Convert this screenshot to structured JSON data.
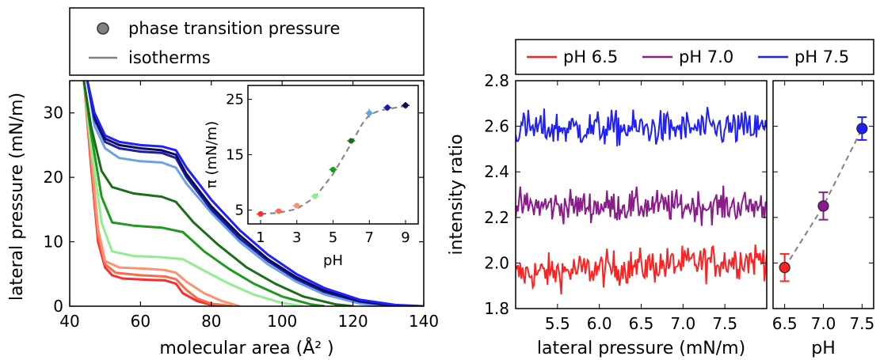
{
  "colors": {
    "ph1": "#ff2b2b",
    "ph2": "#fb6a4a",
    "ph3": "#fc9272",
    "ph4": "#90ee90",
    "ph5": "#1f9a1f",
    "ph6": "#1a6e1a",
    "ph7": "#6ba1e6",
    "ph8": "#1c1caa",
    "ph9": "#0b0b5a",
    "red": "#ff2222",
    "purple": "#8b1a8b",
    "blue": "#1f1fff",
    "gray": "#808080"
  },
  "chart_data": [
    {
      "id": "isotherms",
      "type": "line",
      "xlabel": "molecular area (Å² )",
      "ylabel": "lateral pressure (mN/m)",
      "xlim": [
        40,
        140
      ],
      "ylim": [
        0,
        35
      ],
      "x_ticks": [
        "40",
        "60",
        "80",
        "100",
        "120",
        "140"
      ],
      "y_ticks": [
        "0",
        "10",
        "20",
        "30"
      ],
      "legend": {
        "placement": "top-left-outside",
        "entries": [
          {
            "label": "phase transition pressure",
            "marker": "circle"
          },
          {
            "label": "isotherms",
            "marker": "line"
          }
        ]
      },
      "series": [
        {
          "color_key": "ph1",
          "points": [
            [
              44,
              35
            ],
            [
              46,
              22
            ],
            [
              48,
              10
            ],
            [
              50,
              6
            ],
            [
              52,
              4.8
            ],
            [
              55,
              4.3
            ],
            [
              62,
              4.1
            ],
            [
              67,
              4.0
            ],
            [
              70,
              3.5
            ],
            [
              72,
              2.0
            ],
            [
              76,
              0.8
            ],
            [
              80,
              0.2
            ],
            [
              84,
              0
            ]
          ]
        },
        {
          "color_key": "ph2",
          "points": [
            [
              44,
              35
            ],
            [
              46,
              23
            ],
            [
              48,
              11
            ],
            [
              50,
              6.5
            ],
            [
              53,
              5.2
            ],
            [
              60,
              4.8
            ],
            [
              67,
              4.6
            ],
            [
              70,
              4.2
            ],
            [
              73,
              2.5
            ],
            [
              76,
              1.2
            ],
            [
              80,
              0.4
            ],
            [
              86,
              0
            ]
          ]
        },
        {
          "color_key": "ph3",
          "points": [
            [
              44,
              35
            ],
            [
              46,
              24
            ],
            [
              48,
              12
            ],
            [
              50,
              7
            ],
            [
              54,
              6
            ],
            [
              62,
              5.8
            ],
            [
              67,
              5.6
            ],
            [
              70,
              5.2
            ],
            [
              73,
              3.8
            ],
            [
              78,
              2.0
            ],
            [
              83,
              0.8
            ],
            [
              88,
              0
            ]
          ]
        },
        {
          "color_key": "ph4",
          "points": [
            [
              44,
              35
            ],
            [
              46,
              25
            ],
            [
              49,
              13
            ],
            [
              52,
              8.5
            ],
            [
              58,
              7.8
            ],
            [
              66,
              7.6
            ],
            [
              72,
              7.3
            ],
            [
              78,
              5.5
            ],
            [
              85,
              3.5
            ],
            [
              92,
              1.8
            ],
            [
              100,
              0.5
            ],
            [
              106,
              0
            ]
          ]
        },
        {
          "color_key": "ph5",
          "points": [
            [
              44,
              35
            ],
            [
              46,
              27
            ],
            [
              49,
              17
            ],
            [
              52,
              13
            ],
            [
              58,
              12.5
            ],
            [
              66,
              12.2
            ],
            [
              72,
              11.5
            ],
            [
              78,
              8.5
            ],
            [
              85,
              5.8
            ],
            [
              92,
              3.5
            ],
            [
              100,
              1.5
            ],
            [
              108,
              0.3
            ],
            [
              112,
              0
            ]
          ]
        },
        {
          "color_key": "ph6",
          "points": [
            [
              44,
              35
            ],
            [
              46,
              28
            ],
            [
              49,
              21
            ],
            [
              52,
              18.5
            ],
            [
              58,
              17.5
            ],
            [
              66,
              17
            ],
            [
              70,
              16.2
            ],
            [
              75,
              13
            ],
            [
              82,
              9.5
            ],
            [
              90,
              6
            ],
            [
              98,
              3.5
            ],
            [
              106,
              1.5
            ],
            [
              115,
              0.3
            ],
            [
              120,
              0
            ]
          ]
        },
        {
          "color_key": "ph7",
          "points": [
            [
              45,
              35
            ],
            [
              47,
              28
            ],
            [
              50,
              24.5
            ],
            [
              54,
              23
            ],
            [
              60,
              22.5
            ],
            [
              66,
              22.3
            ],
            [
              70,
              21.5
            ],
            [
              73,
              19
            ],
            [
              80,
              14.5
            ],
            [
              88,
              10
            ],
            [
              96,
              6.5
            ],
            [
              104,
              3.8
            ],
            [
              112,
              1.8
            ],
            [
              122,
              0.4
            ],
            [
              130,
              0
            ]
          ]
        },
        {
          "color_key": "ph8",
          "points": [
            [
              45,
              35
            ],
            [
              47,
              29
            ],
            [
              50,
              25.5
            ],
            [
              54,
              24.5
            ],
            [
              60,
              24
            ],
            [
              66,
              23.8
            ],
            [
              70,
              23
            ],
            [
              73,
              20
            ],
            [
              80,
              15
            ],
            [
              88,
              10.5
            ],
            [
              96,
              7
            ],
            [
              104,
              4.2
            ],
            [
              112,
              2.2
            ],
            [
              122,
              0.7
            ],
            [
              132,
              0
            ]
          ]
        },
        {
          "color_key": "ph9",
          "points": [
            [
              45,
              35
            ],
            [
              47,
              29.5
            ],
            [
              50,
              26
            ],
            [
              54,
              25
            ],
            [
              60,
              24.5
            ],
            [
              66,
              24.2
            ],
            [
              70,
              23.5
            ],
            [
              73,
              20.5
            ],
            [
              80,
              15.5
            ],
            [
              88,
              11
            ],
            [
              96,
              7.3
            ],
            [
              104,
              4.5
            ],
            [
              112,
              2.4
            ],
            [
              122,
              0.8
            ],
            [
              134,
              0
            ]
          ]
        },
        {
          "color_key": "blue",
          "points": [
            [
              45,
              35
            ],
            [
              47,
              30
            ],
            [
              50,
              26.5
            ],
            [
              54,
              25.5
            ],
            [
              60,
              25
            ],
            [
              66,
              24.8
            ],
            [
              70,
              24.2
            ],
            [
              73,
              21.5
            ],
            [
              80,
              16.5
            ],
            [
              88,
              11.8
            ],
            [
              96,
              8
            ],
            [
              104,
              5
            ],
            [
              112,
              2.8
            ],
            [
              122,
              1.0
            ],
            [
              132,
              0.2
            ],
            [
              140,
              0
            ]
          ]
        }
      ]
    },
    {
      "id": "inset",
      "type": "scatter",
      "xlabel": "pH",
      "ylabel": "π (mN/m)",
      "xlim": [
        0.3,
        9.7
      ],
      "ylim": [
        2.5,
        27.5
      ],
      "x_ticks": [
        "1",
        "3",
        "5",
        "7",
        "9"
      ],
      "y_ticks": [
        "5",
        "15",
        "25"
      ],
      "x": [
        1,
        2,
        3,
        4,
        5,
        6,
        7,
        8,
        9
      ],
      "y": [
        4.3,
        4.8,
        5.8,
        7.5,
        12.3,
        17.5,
        22.5,
        23.5,
        23.9
      ],
      "err": [
        0.4,
        0.3,
        0.4,
        0.4,
        0.5,
        0.5,
        0.8,
        0.6,
        0.6
      ],
      "color_keys": [
        "ph1",
        "ph2",
        "ph3",
        "ph4",
        "ph5",
        "ph6",
        "ph7",
        "ph8",
        "ph9"
      ],
      "fit": [
        [
          1,
          4.3
        ],
        [
          2,
          4.5
        ],
        [
          3,
          5.2
        ],
        [
          4,
          7.3
        ],
        [
          5,
          11.5
        ],
        [
          6,
          17
        ],
        [
          6.6,
          20.5
        ],
        [
          7,
          22.2
        ],
        [
          7.6,
          23.0
        ],
        [
          9,
          23.8
        ]
      ]
    },
    {
      "id": "intensity",
      "type": "line",
      "xlabel": "lateral pressure (mN/m)",
      "ylabel": "intensity ratio",
      "xlim": [
        5.0,
        8.0
      ],
      "ylim": [
        1.8,
        2.8
      ],
      "x_ticks": [
        "5.5",
        "6.0",
        "6.5",
        "7.0",
        "7.5"
      ],
      "y_ticks": [
        "1.8",
        "2.0",
        "2.2",
        "2.4",
        "2.6",
        "2.8"
      ],
      "legend": {
        "placement": "top-outside",
        "entries": [
          {
            "label": "pH 6.5",
            "color_key": "red"
          },
          {
            "label": "pH 7.0",
            "color_key": "purple"
          },
          {
            "label": "pH 7.5",
            "color_key": "blue"
          }
        ]
      },
      "series": [
        {
          "name": "pH 6.5",
          "color_key": "red",
          "mean_start": 1.95,
          "mean_end": 2.02,
          "noise": 0.055
        },
        {
          "name": "pH 7.0",
          "color_key": "purple",
          "mean_start": 2.25,
          "mean_end": 2.25,
          "noise": 0.05
        },
        {
          "name": "pH 7.5",
          "color_key": "blue",
          "mean_start": 2.59,
          "mean_end": 2.59,
          "noise": 0.055
        }
      ]
    },
    {
      "id": "ratio-vs-ph",
      "type": "scatter",
      "xlabel": "pH",
      "xlim": [
        6.35,
        7.65
      ],
      "ylim": [
        1.8,
        2.8
      ],
      "x_ticks": [
        "6.5",
        "7.0",
        "7.5"
      ],
      "x": [
        6.5,
        7.0,
        7.5
      ],
      "y": [
        1.98,
        2.25,
        2.59
      ],
      "err": [
        0.06,
        0.06,
        0.05
      ],
      "color_keys": [
        "red",
        "purple",
        "blue"
      ]
    }
  ]
}
